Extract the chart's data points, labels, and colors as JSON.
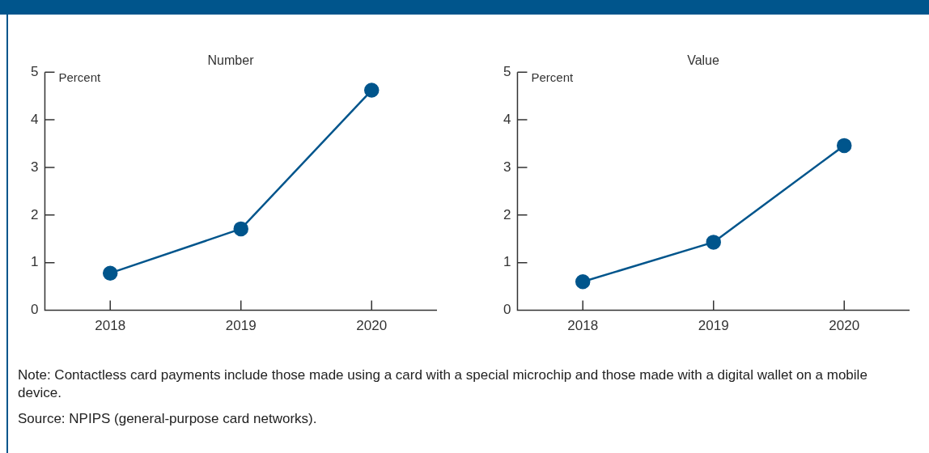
{
  "chart_data": [
    {
      "type": "line",
      "title": "Number",
      "ylabel": "Percent",
      "categories": [
        "2018",
        "2019",
        "2020"
      ],
      "series": [
        {
          "color": "#00558c",
          "values": [
            0.78,
            1.71,
            4.62
          ]
        }
      ],
      "ylim": [
        0,
        5
      ],
      "yticks": [
        0,
        1,
        2,
        3,
        4,
        5
      ],
      "grid": false,
      "legend": false,
      "marker": "circle",
      "line_style": "solid",
      "annotations": [
        "Note: Contactless card payments include those made using a card with a special microchip and those made with a digital wallet on a mobile device.",
        "Source: NPIPS (general-purpose card networks)."
      ]
    },
    {
      "type": "line",
      "title": "Value",
      "ylabel": "Percent",
      "categories": [
        "2018",
        "2019",
        "2020"
      ],
      "series": [
        {
          "color": "#00558c",
          "values": [
            0.6,
            1.43,
            3.46
          ]
        }
      ],
      "ylim": [
        0,
        5
      ],
      "yticks": [
        0,
        1,
        2,
        3,
        4,
        5
      ],
      "grid": false,
      "legend": false,
      "marker": "circle",
      "line_style": "solid"
    }
  ]
}
